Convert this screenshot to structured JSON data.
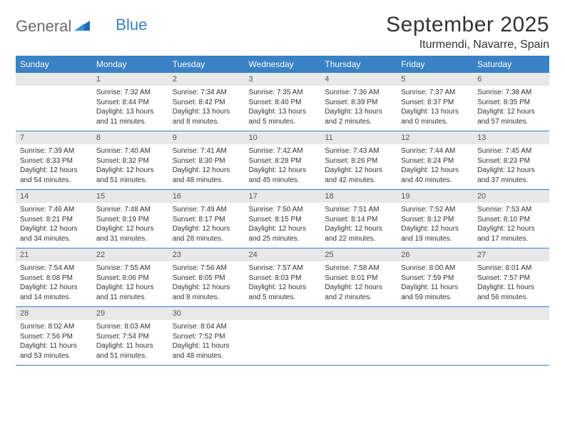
{
  "logo": {
    "part1": "General",
    "part2": "Blue"
  },
  "title": "September 2025",
  "location": "Iturmendi, Navarre, Spain",
  "colors": {
    "header_bg": "#3a82c4",
    "header_text": "#ffffff",
    "daynum_bg": "#e8e8e8",
    "daynum_text": "#555555",
    "body_text": "#333333",
    "rule": "#3a82c4",
    "logo_gray": "#6a6a6a",
    "logo_blue": "#3a7fc4",
    "page_bg": "#ffffff"
  },
  "typography": {
    "title_fontsize": 30,
    "location_fontsize": 16,
    "dayhead_fontsize": 12,
    "daynum_fontsize": 11,
    "cell_fontsize": 10,
    "font_family": "Arial"
  },
  "day_labels": [
    "Sunday",
    "Monday",
    "Tuesday",
    "Wednesday",
    "Thursday",
    "Friday",
    "Saturday"
  ],
  "weeks": [
    [
      {
        "empty": true
      },
      {
        "day": "1",
        "sunrise": "Sunrise: 7:32 AM",
        "sunset": "Sunset: 8:44 PM",
        "daylight": "Daylight: 13 hours and 11 minutes."
      },
      {
        "day": "2",
        "sunrise": "Sunrise: 7:34 AM",
        "sunset": "Sunset: 8:42 PM",
        "daylight": "Daylight: 13 hours and 8 minutes."
      },
      {
        "day": "3",
        "sunrise": "Sunrise: 7:35 AM",
        "sunset": "Sunset: 8:40 PM",
        "daylight": "Daylight: 13 hours and 5 minutes."
      },
      {
        "day": "4",
        "sunrise": "Sunrise: 7:36 AM",
        "sunset": "Sunset: 8:39 PM",
        "daylight": "Daylight: 13 hours and 2 minutes."
      },
      {
        "day": "5",
        "sunrise": "Sunrise: 7:37 AM",
        "sunset": "Sunset: 8:37 PM",
        "daylight": "Daylight: 13 hours and 0 minutes."
      },
      {
        "day": "6",
        "sunrise": "Sunrise: 7:38 AM",
        "sunset": "Sunset: 8:35 PM",
        "daylight": "Daylight: 12 hours and 57 minutes."
      }
    ],
    [
      {
        "day": "7",
        "sunrise": "Sunrise: 7:39 AM",
        "sunset": "Sunset: 8:33 PM",
        "daylight": "Daylight: 12 hours and 54 minutes."
      },
      {
        "day": "8",
        "sunrise": "Sunrise: 7:40 AM",
        "sunset": "Sunset: 8:32 PM",
        "daylight": "Daylight: 12 hours and 51 minutes."
      },
      {
        "day": "9",
        "sunrise": "Sunrise: 7:41 AM",
        "sunset": "Sunset: 8:30 PM",
        "daylight": "Daylight: 12 hours and 48 minutes."
      },
      {
        "day": "10",
        "sunrise": "Sunrise: 7:42 AM",
        "sunset": "Sunset: 8:28 PM",
        "daylight": "Daylight: 12 hours and 45 minutes."
      },
      {
        "day": "11",
        "sunrise": "Sunrise: 7:43 AM",
        "sunset": "Sunset: 8:26 PM",
        "daylight": "Daylight: 12 hours and 42 minutes."
      },
      {
        "day": "12",
        "sunrise": "Sunrise: 7:44 AM",
        "sunset": "Sunset: 8:24 PM",
        "daylight": "Daylight: 12 hours and 40 minutes."
      },
      {
        "day": "13",
        "sunrise": "Sunrise: 7:45 AM",
        "sunset": "Sunset: 8:23 PM",
        "daylight": "Daylight: 12 hours and 37 minutes."
      }
    ],
    [
      {
        "day": "14",
        "sunrise": "Sunrise: 7:46 AM",
        "sunset": "Sunset: 8:21 PM",
        "daylight": "Daylight: 12 hours and 34 minutes."
      },
      {
        "day": "15",
        "sunrise": "Sunrise: 7:48 AM",
        "sunset": "Sunset: 8:19 PM",
        "daylight": "Daylight: 12 hours and 31 minutes."
      },
      {
        "day": "16",
        "sunrise": "Sunrise: 7:49 AM",
        "sunset": "Sunset: 8:17 PM",
        "daylight": "Daylight: 12 hours and 28 minutes."
      },
      {
        "day": "17",
        "sunrise": "Sunrise: 7:50 AM",
        "sunset": "Sunset: 8:15 PM",
        "daylight": "Daylight: 12 hours and 25 minutes."
      },
      {
        "day": "18",
        "sunrise": "Sunrise: 7:51 AM",
        "sunset": "Sunset: 8:14 PM",
        "daylight": "Daylight: 12 hours and 22 minutes."
      },
      {
        "day": "19",
        "sunrise": "Sunrise: 7:52 AM",
        "sunset": "Sunset: 8:12 PM",
        "daylight": "Daylight: 12 hours and 19 minutes."
      },
      {
        "day": "20",
        "sunrise": "Sunrise: 7:53 AM",
        "sunset": "Sunset: 8:10 PM",
        "daylight": "Daylight: 12 hours and 17 minutes."
      }
    ],
    [
      {
        "day": "21",
        "sunrise": "Sunrise: 7:54 AM",
        "sunset": "Sunset: 8:08 PM",
        "daylight": "Daylight: 12 hours and 14 minutes."
      },
      {
        "day": "22",
        "sunrise": "Sunrise: 7:55 AM",
        "sunset": "Sunset: 8:06 PM",
        "daylight": "Daylight: 12 hours and 11 minutes."
      },
      {
        "day": "23",
        "sunrise": "Sunrise: 7:56 AM",
        "sunset": "Sunset: 8:05 PM",
        "daylight": "Daylight: 12 hours and 8 minutes."
      },
      {
        "day": "24",
        "sunrise": "Sunrise: 7:57 AM",
        "sunset": "Sunset: 8:03 PM",
        "daylight": "Daylight: 12 hours and 5 minutes."
      },
      {
        "day": "25",
        "sunrise": "Sunrise: 7:58 AM",
        "sunset": "Sunset: 8:01 PM",
        "daylight": "Daylight: 12 hours and 2 minutes."
      },
      {
        "day": "26",
        "sunrise": "Sunrise: 8:00 AM",
        "sunset": "Sunset: 7:59 PM",
        "daylight": "Daylight: 11 hours and 59 minutes."
      },
      {
        "day": "27",
        "sunrise": "Sunrise: 8:01 AM",
        "sunset": "Sunset: 7:57 PM",
        "daylight": "Daylight: 11 hours and 56 minutes."
      }
    ],
    [
      {
        "day": "28",
        "sunrise": "Sunrise: 8:02 AM",
        "sunset": "Sunset: 7:56 PM",
        "daylight": "Daylight: 11 hours and 53 minutes."
      },
      {
        "day": "29",
        "sunrise": "Sunrise: 8:03 AM",
        "sunset": "Sunset: 7:54 PM",
        "daylight": "Daylight: 11 hours and 51 minutes."
      },
      {
        "day": "30",
        "sunrise": "Sunrise: 8:04 AM",
        "sunset": "Sunset: 7:52 PM",
        "daylight": "Daylight: 11 hours and 48 minutes."
      },
      {
        "empty": true
      },
      {
        "empty": true
      },
      {
        "empty": true
      },
      {
        "empty": true
      }
    ]
  ]
}
